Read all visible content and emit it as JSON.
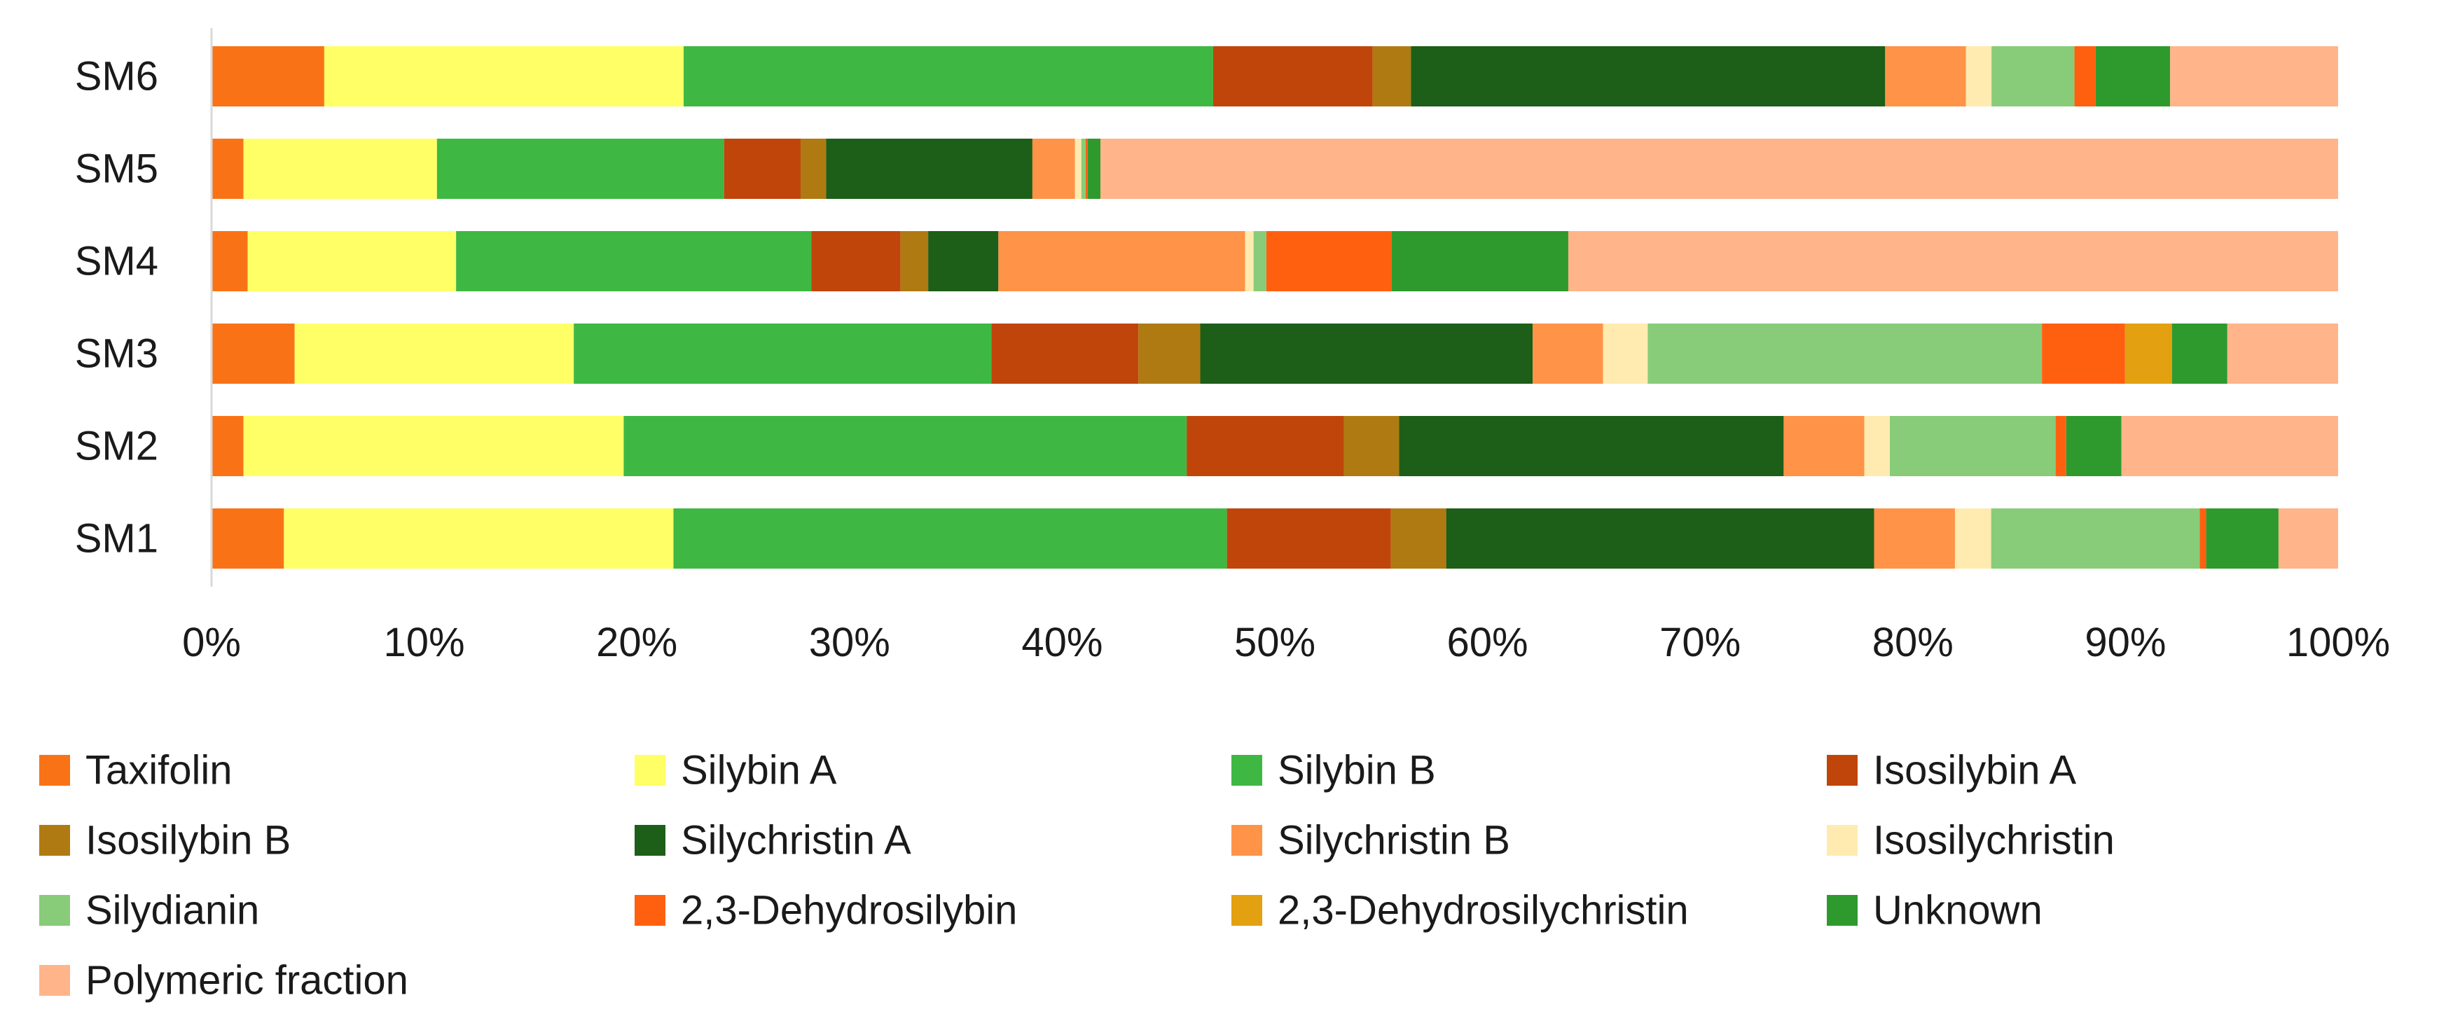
{
  "chart_data": {
    "type": "bar",
    "orientation": "horizontal",
    "stacked": "percent",
    "title": "",
    "xlabel": "",
    "ylabel": "",
    "xlim": [
      0,
      100
    ],
    "x_ticks": [
      "0%",
      "10%",
      "20%",
      "30%",
      "40%",
      "50%",
      "60%",
      "70%",
      "80%",
      "90%",
      "100%"
    ],
    "grid": false,
    "legend_position": "bottom",
    "categories": [
      "SM6",
      "SM5",
      "SM4",
      "SM3",
      "SM2",
      "SM1"
    ],
    "series": [
      {
        "name": "Taxifolin",
        "color": "#F97316",
        "values": [
          5.3,
          1.5,
          1.7,
          3.9,
          1.5,
          3.4
        ]
      },
      {
        "name": "Silybin A",
        "color": "#FFFF66",
        "values": [
          16.9,
          9.1,
          9.8,
          13.1,
          17.9,
          18.3
        ]
      },
      {
        "name": "Silybin B",
        "color": "#3EB843",
        "values": [
          24.9,
          13.5,
          16.7,
          19.6,
          26.5,
          26.0
        ]
      },
      {
        "name": "Isosilybin A",
        "color": "#C0450A",
        "values": [
          7.5,
          3.6,
          4.2,
          6.9,
          7.4,
          7.7
        ]
      },
      {
        "name": "Isosilybin B",
        "color": "#B07A12",
        "values": [
          1.8,
          1.2,
          1.3,
          2.9,
          2.6,
          2.6
        ]
      },
      {
        "name": "Silychristin A",
        "color": "#1D5E18",
        "values": [
          22.3,
          9.7,
          3.3,
          15.6,
          18.1,
          20.1
        ]
      },
      {
        "name": "Silychristin B",
        "color": "#FF9347",
        "values": [
          3.8,
          2.0,
          11.6,
          3.3,
          3.8,
          3.8
        ]
      },
      {
        "name": "Isosilychristin",
        "color": "#FFEBB0",
        "values": [
          1.2,
          0.3,
          0.4,
          2.1,
          1.2,
          1.7
        ]
      },
      {
        "name": "Silydianin",
        "color": "#88CC7A",
        "values": [
          3.9,
          0.2,
          0.6,
          18.5,
          7.8,
          9.8
        ]
      },
      {
        "name": "2,3-Dehydrosilybin",
        "color": "#FF6010",
        "values": [
          1.0,
          0.1,
          5.9,
          3.9,
          0.5,
          0.3
        ]
      },
      {
        "name": "2,3-Dehydrosilychristin",
        "color": "#E3A010",
        "values": [
          0.0,
          0.0,
          0.0,
          2.2,
          0.0,
          0.0
        ]
      },
      {
        "name": "Unknown",
        "color": "#2E9A2E",
        "values": [
          3.5,
          0.6,
          8.3,
          2.6,
          2.6,
          3.4
        ]
      },
      {
        "name": "Polymeric fraction",
        "color": "#FFB48A",
        "values": [
          7.9,
          58.2,
          36.2,
          5.2,
          10.2,
          2.8
        ]
      }
    ]
  }
}
